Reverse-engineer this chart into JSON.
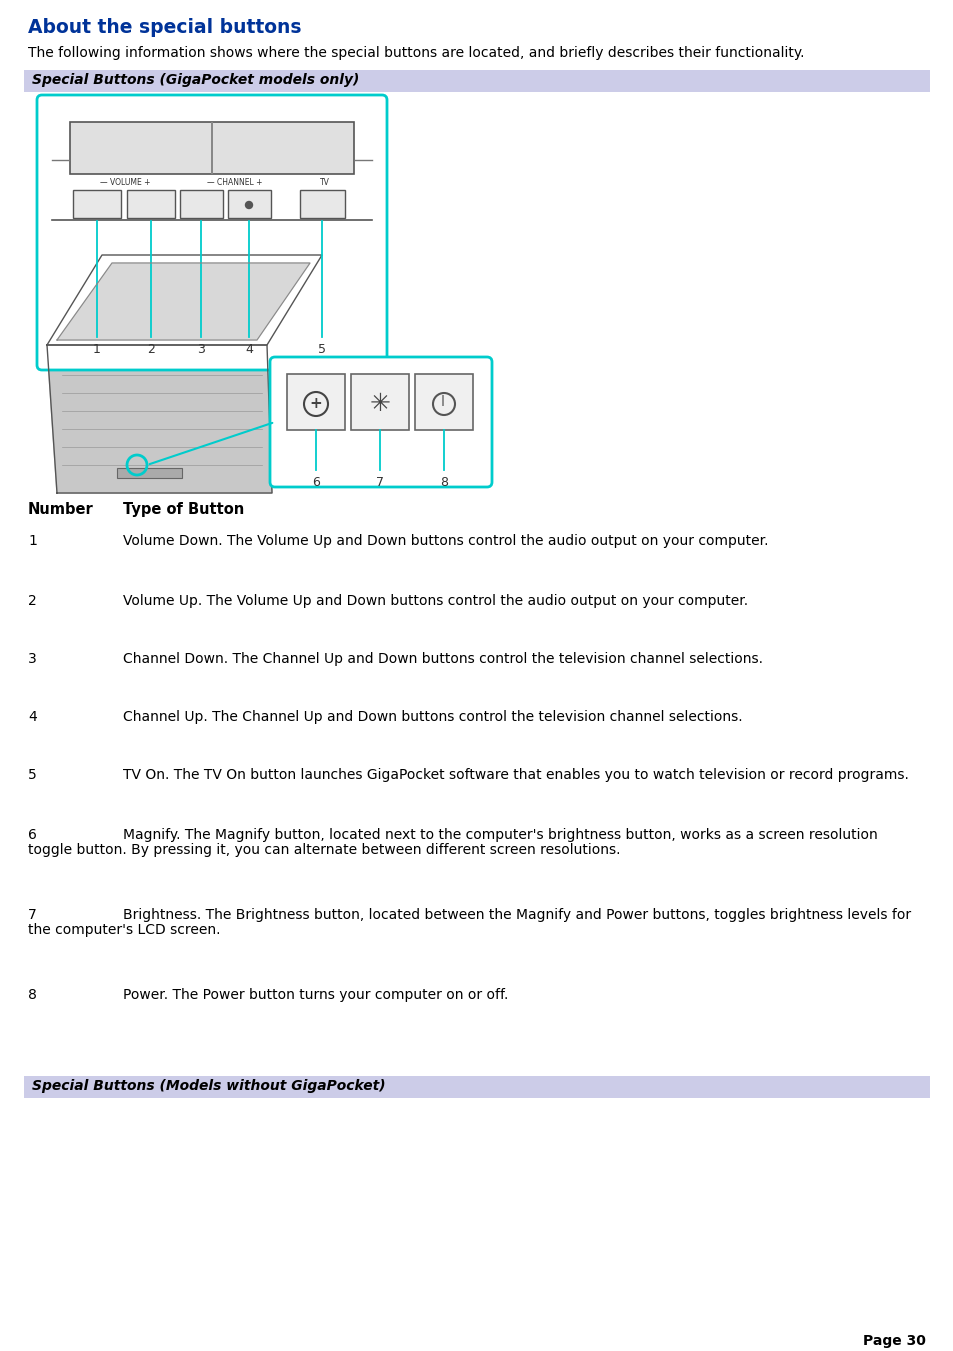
{
  "title": "About the special buttons",
  "subtitle": "The following information shows where the special buttons are located, and briefly describes their functionality.",
  "section1_label": "Special Buttons (GigaPocket models only)",
  "section2_label": "Special Buttons (Models without GigaPocket)",
  "section_bg_color": "#cccce8",
  "title_color": "#003399",
  "body_text_color": "#000000",
  "page_bg": "#ffffff",
  "cyan_color": "#00cccc",
  "table_header_num": "Number",
  "table_header_btn": "Type of Button",
  "rows": [
    {
      "num": "1",
      "text1": "Volume Down. The Volume Up and Down buttons control the audio output on your computer.",
      "text2": ""
    },
    {
      "num": "2",
      "text1": "Volume Up. The Volume Up and Down buttons control the audio output on your computer.",
      "text2": ""
    },
    {
      "num": "3",
      "text1": "Channel Down. The Channel Up and Down buttons control the television channel selections.",
      "text2": ""
    },
    {
      "num": "4",
      "text1": "Channel Up. The Channel Up and Down buttons control the television channel selections.",
      "text2": ""
    },
    {
      "num": "5",
      "text1": "TV On. The TV On button launches GigaPocket software that enables you to watch television or record programs.",
      "text2": ""
    },
    {
      "num": "6",
      "text1": "Magnify. The Magnify button, located next to the computer's brightness button, works as a screen resolution",
      "text2": "toggle button. By pressing it, you can alternate between different screen resolutions."
    },
    {
      "num": "7",
      "text1": "Brightness. The Brightness button, located between the Magnify and Power buttons, toggles brightness levels for",
      "text2": "the computer's LCD screen."
    },
    {
      "num": "8",
      "text1": "Power. The Power button turns your computer on or off.",
      "text2": ""
    }
  ],
  "page_number": "Page 30"
}
